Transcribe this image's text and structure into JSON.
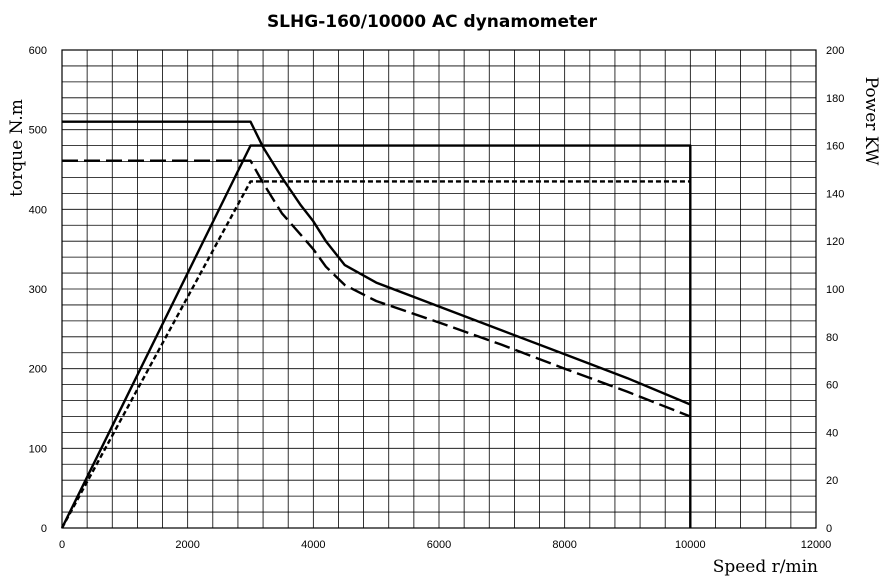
{
  "chart_data": {
    "type": "line",
    "title": "SLHG-160/10000 AC dynamometer",
    "xlabel": "Speed r/min",
    "ylabel_left": "torque N.m",
    "ylabel_right": "Power KW",
    "xlim": [
      0,
      12000
    ],
    "ylim_left": [
      0,
      600
    ],
    "ylim_right": [
      0,
      200
    ],
    "x_ticks": [
      "0",
      "2000",
      "4000",
      "6000",
      "8000",
      "10000",
      "12000"
    ],
    "y_ticks_left": [
      "0",
      "100",
      "200",
      "300",
      "400",
      "500",
      "600"
    ],
    "y_ticks_right": [
      "0",
      "20",
      "40",
      "60",
      "80",
      "100",
      "120",
      "140",
      "160",
      "180",
      "200"
    ],
    "grid": true,
    "series": [
      {
        "axis": "left",
        "style": "solid",
        "points": [
          [
            0,
            510
          ],
          [
            3000,
            510
          ],
          [
            3200,
            478
          ],
          [
            3500,
            440
          ],
          [
            3800,
            405
          ],
          [
            4000,
            385
          ],
          [
            4200,
            360
          ],
          [
            4500,
            330
          ],
          [
            5000,
            308
          ],
          [
            6000,
            278
          ],
          [
            7000,
            248
          ],
          [
            8000,
            218
          ],
          [
            9000,
            188
          ],
          [
            10000,
            155
          ]
        ]
      },
      {
        "axis": "left",
        "style": "long-dash",
        "points": [
          [
            0,
            461
          ],
          [
            3000,
            461
          ],
          [
            3200,
            433
          ],
          [
            3500,
            395
          ],
          [
            3800,
            368
          ],
          [
            4000,
            350
          ],
          [
            4200,
            328
          ],
          [
            4500,
            305
          ],
          [
            5000,
            285
          ],
          [
            6000,
            258
          ],
          [
            7000,
            230
          ],
          [
            8000,
            200
          ],
          [
            9000,
            171
          ],
          [
            10000,
            140
          ]
        ]
      },
      {
        "axis": "right",
        "style": "solid",
        "points": [
          [
            0,
            0
          ],
          [
            3000,
            160
          ],
          [
            10000,
            160
          ],
          [
            10000,
            0
          ]
        ]
      },
      {
        "axis": "right",
        "style": "short-dash",
        "points": [
          [
            0,
            0
          ],
          [
            3000,
            145
          ],
          [
            10000,
            145
          ]
        ]
      }
    ]
  }
}
